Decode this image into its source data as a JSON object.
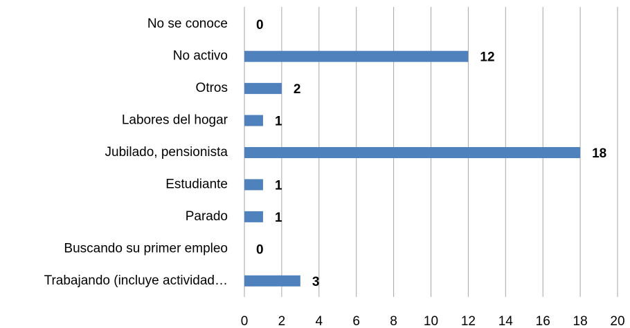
{
  "chart_data": {
    "type": "barh",
    "categories": [
      "No se conoce",
      "No activo",
      "Otros",
      "Labores del hogar",
      "Jubilado, pensionista",
      "Estudiante",
      "Parado",
      "Buscando su primer empleo",
      "Trabajando (incluye actividad…"
    ],
    "values": [
      0,
      12,
      2,
      1,
      18,
      1,
      1,
      0,
      3
    ],
    "color": "#4f81bd",
    "xlim": [
      0,
      20
    ],
    "xticks": [
      0,
      2,
      4,
      6,
      8,
      10,
      12,
      14,
      16,
      18,
      20
    ],
    "grid": true
  }
}
